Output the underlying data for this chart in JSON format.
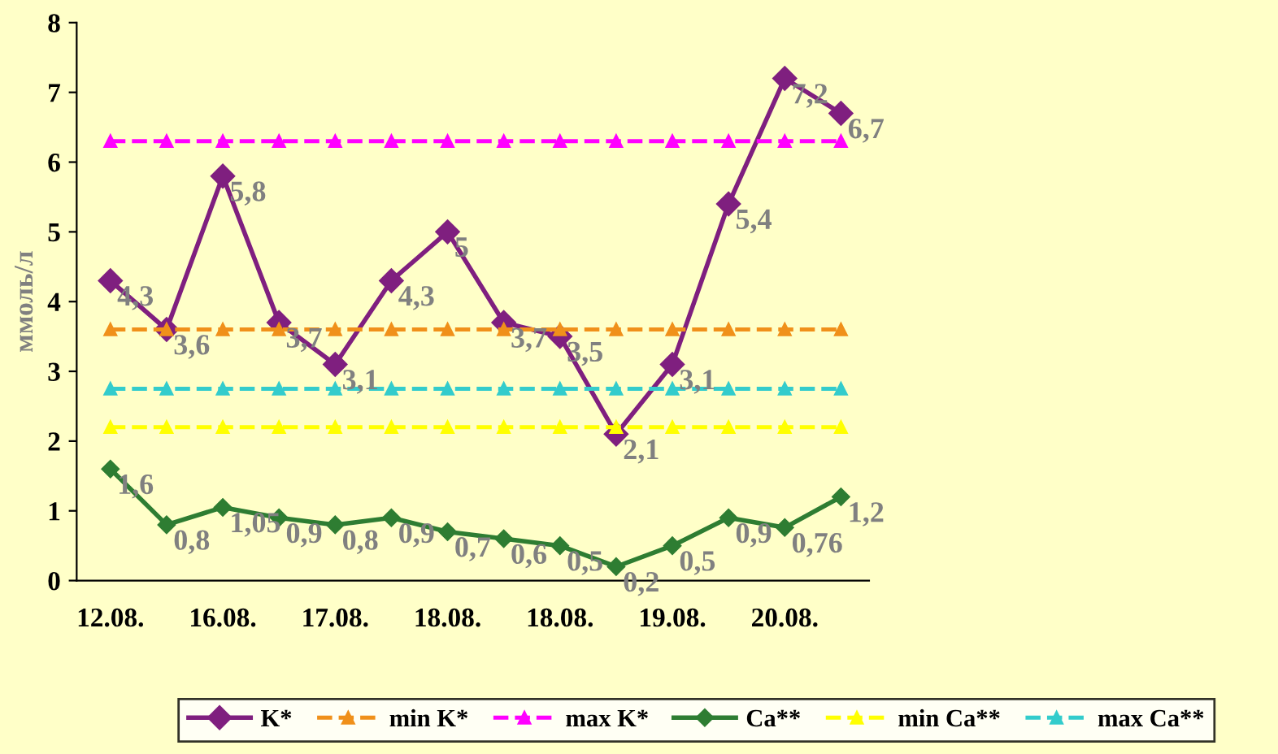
{
  "chart_data": {
    "type": "line",
    "ylabel": "ммоль/л",
    "categories": [
      "12.08.",
      null,
      "16.08.",
      null,
      "17.08.",
      null,
      "18.08.",
      null,
      "18.08.",
      null,
      "19.08.",
      null,
      "20.08.",
      null
    ],
    "series": [
      {
        "name": "K*",
        "color": "#7f1f7f",
        "marker": "diamond",
        "line_style": "solid",
        "values": [
          4.3,
          3.6,
          5.8,
          3.7,
          3.1,
          4.3,
          5,
          3.7,
          3.5,
          2.1,
          3.1,
          5.4,
          7.2,
          6.7
        ],
        "value_labels": [
          "4,3",
          "3,6",
          "5,8",
          "3,7",
          "3,1",
          "4,3",
          "5",
          "3,7",
          "3,5",
          "2,1",
          "3,1",
          "5,4",
          "7,2",
          "6,7"
        ]
      },
      {
        "name": "min K*",
        "color": "#f0901a",
        "marker": "triangle",
        "line_style": "dashed",
        "values": [
          3.6,
          3.6,
          3.6,
          3.6,
          3.6,
          3.6,
          3.6,
          3.6,
          3.6,
          3.6,
          3.6,
          3.6,
          3.6,
          3.6
        ]
      },
      {
        "name": "max K*",
        "color": "#ff00ff",
        "marker": "triangle",
        "line_style": "dashed",
        "values": [
          6.3,
          6.3,
          6.3,
          6.3,
          6.3,
          6.3,
          6.3,
          6.3,
          6.3,
          6.3,
          6.3,
          6.3,
          6.3,
          6.3
        ]
      },
      {
        "name": "Ca**",
        "color": "#2e7d32",
        "marker": "diamond",
        "line_style": "solid",
        "values": [
          1.6,
          0.8,
          1.05,
          0.9,
          0.8,
          0.9,
          0.7,
          0.6,
          0.5,
          0.2,
          0.5,
          0.9,
          0.76,
          1.2
        ],
        "value_labels": [
          "1,6",
          "0,8",
          "1,05",
          "0,9",
          "0,8",
          "0,9",
          "0,7",
          "0,6",
          "0,5",
          "0,2",
          "0,5",
          "0,9",
          "0,76",
          "1,2"
        ]
      },
      {
        "name": "min Ca**",
        "color": "#ffff00",
        "marker": "triangle",
        "line_style": "dashed",
        "values": [
          2.2,
          2.2,
          2.2,
          2.2,
          2.2,
          2.2,
          2.2,
          2.2,
          2.2,
          2.2,
          2.2,
          2.2,
          2.2,
          2.2
        ]
      },
      {
        "name": "max Ca**",
        "color": "#33cccc",
        "marker": "triangle",
        "line_style": "dashed",
        "values": [
          2.75,
          2.75,
          2.75,
          2.75,
          2.75,
          2.75,
          2.75,
          2.75,
          2.75,
          2.75,
          2.75,
          2.75,
          2.75,
          2.75
        ]
      }
    ],
    "ylim": [
      0,
      8
    ],
    "yticks": [
      0,
      1,
      2,
      3,
      4,
      5,
      6,
      7,
      8
    ],
    "grid": false,
    "legend": "bottom"
  }
}
